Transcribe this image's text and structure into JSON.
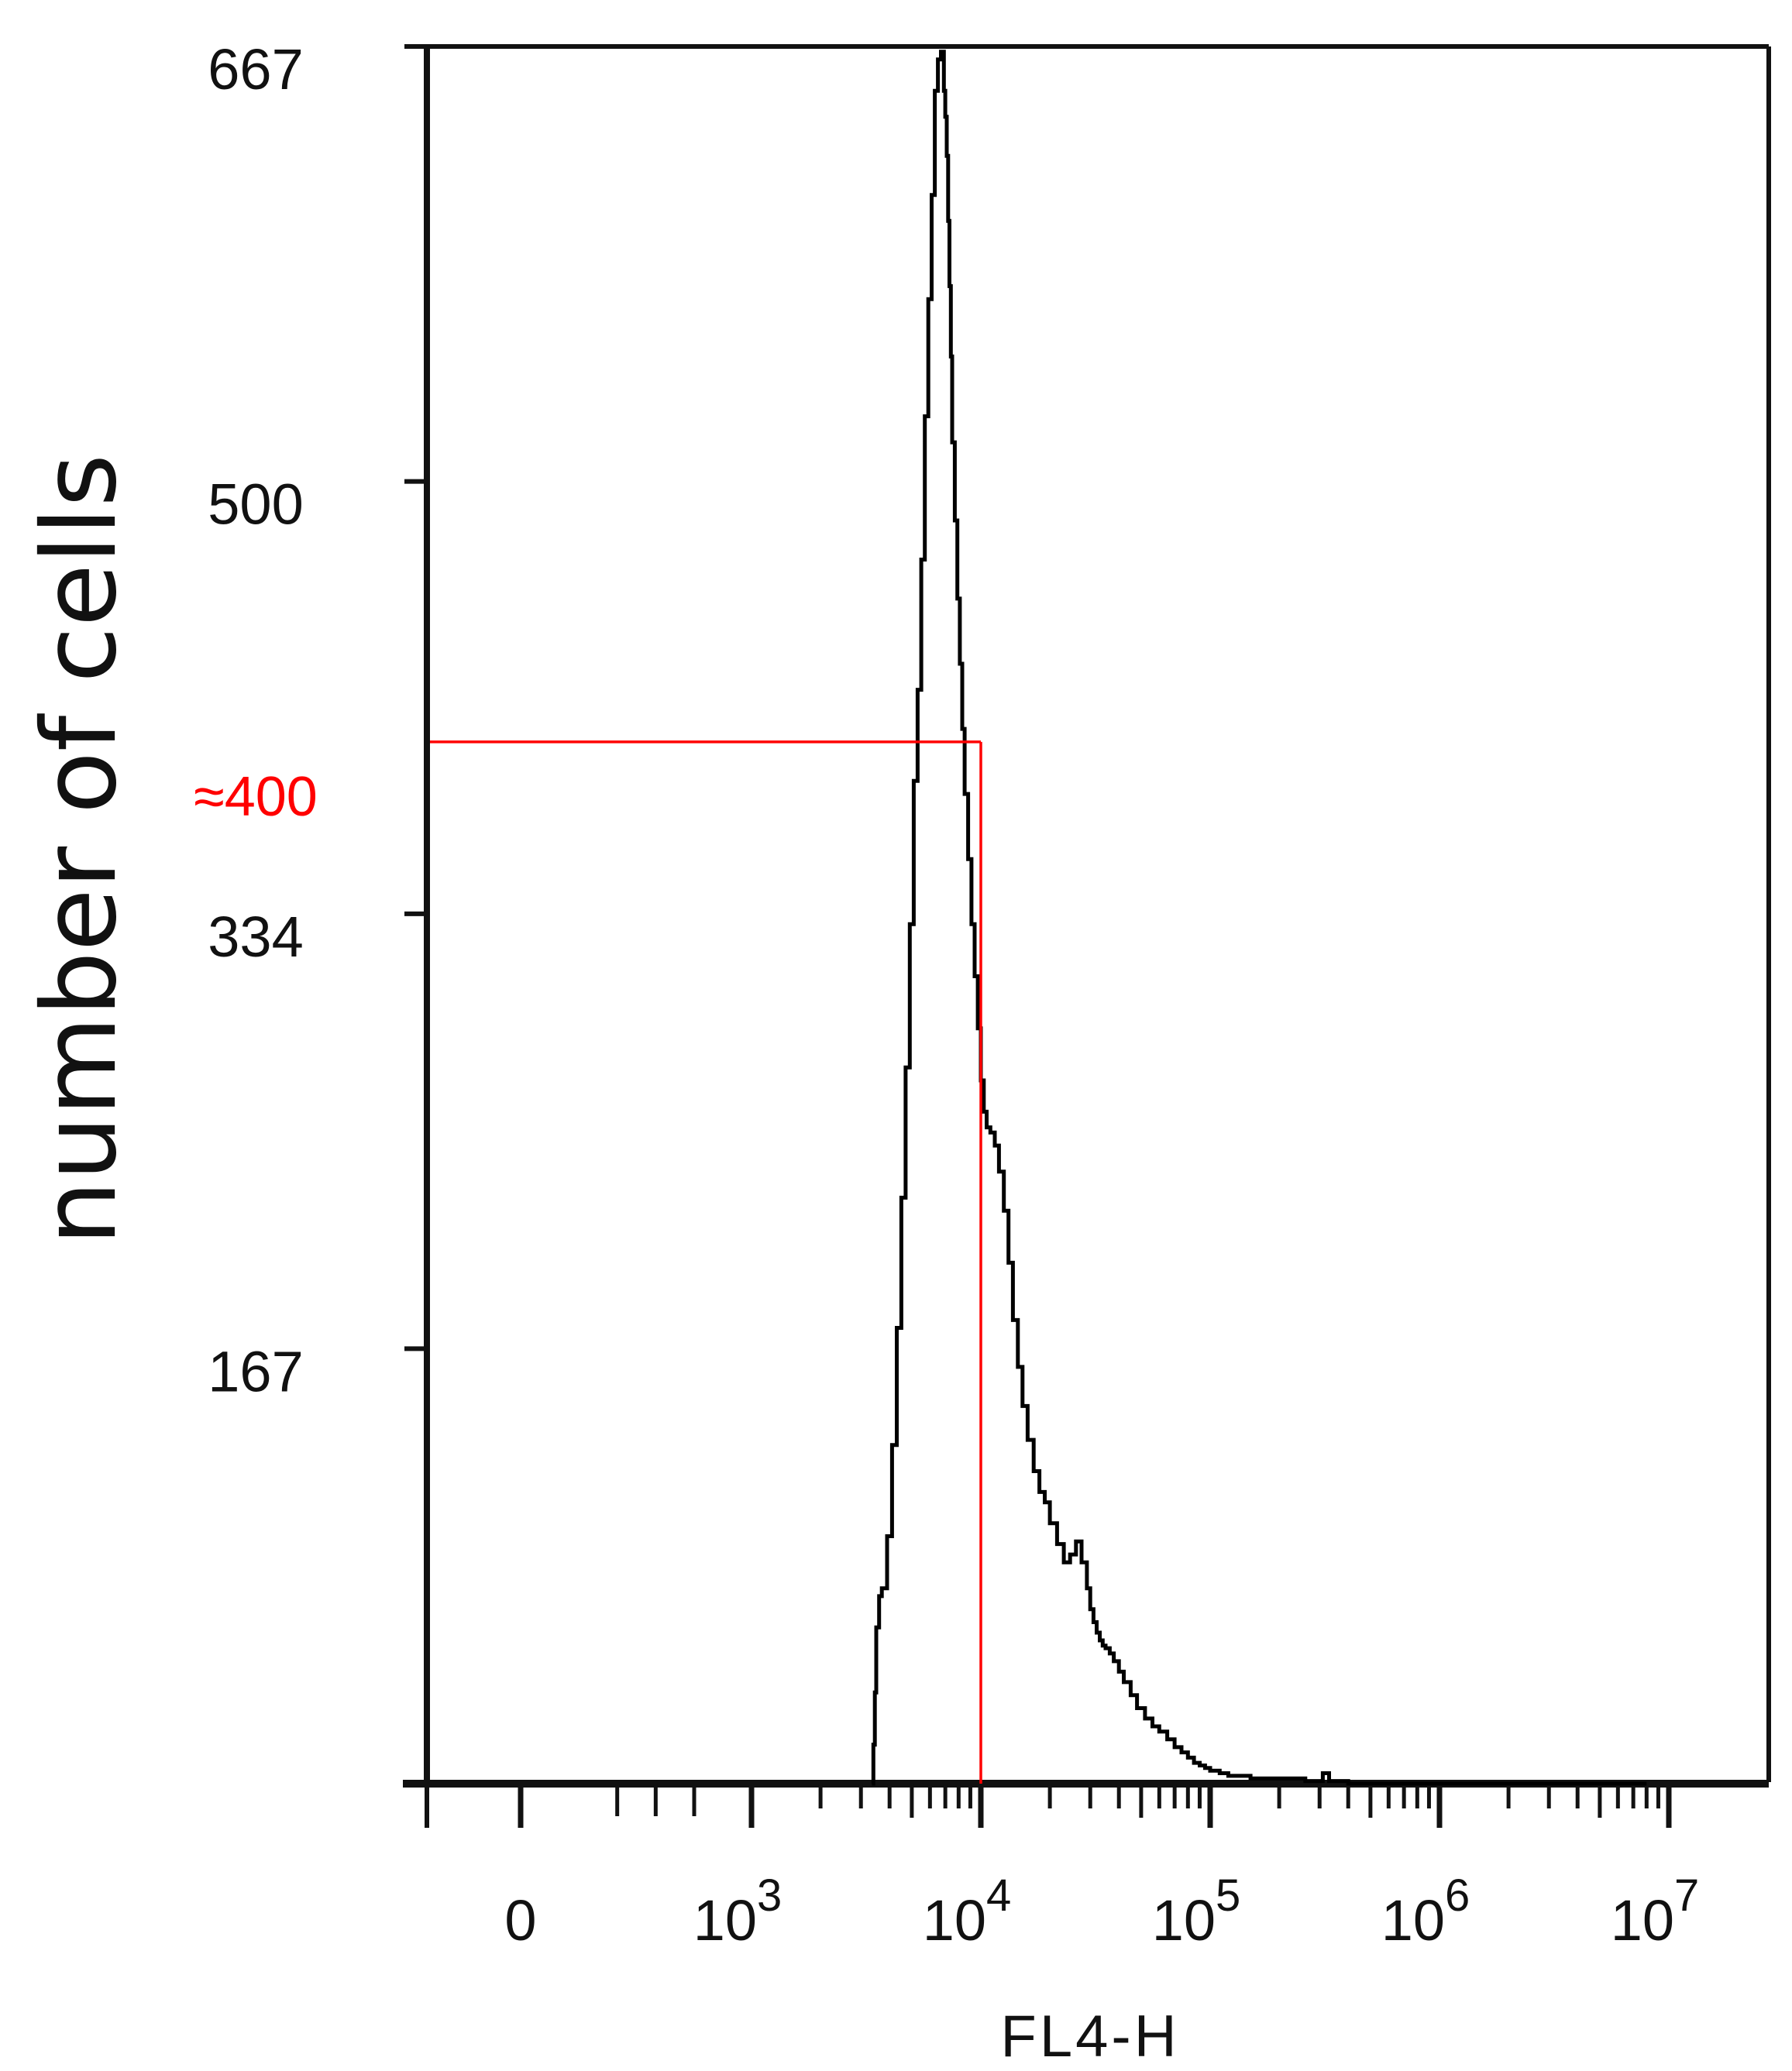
{
  "chart_data": {
    "type": "line",
    "title": "",
    "xlabel": "FL4-H",
    "ylabel": "number of cells",
    "x_scale": "log",
    "xlim": [
      0,
      10000000
    ],
    "ylim": [
      0,
      667
    ],
    "x_ticks": [
      {
        "value": 0,
        "label": "0"
      },
      {
        "value": 1000,
        "base": "10",
        "exp": "3"
      },
      {
        "value": 10000,
        "base": "10",
        "exp": "4"
      },
      {
        "value": 100000,
        "base": "10",
        "exp": "5"
      },
      {
        "value": 1000000,
        "base": "10",
        "exp": "6"
      },
      {
        "value": 10000000,
        "base": "10",
        "exp": "7"
      }
    ],
    "y_ticks": [
      {
        "value": 667,
        "label": "667"
      },
      {
        "value": 500,
        "label": "500"
      },
      {
        "value": 334,
        "label": "334"
      },
      {
        "value": 167,
        "label": "167"
      }
    ],
    "grid": false,
    "legend": "none",
    "series": [
      {
        "color": "#000000",
        "x": [
          3350,
          3400,
          3450,
          3500,
          3600,
          3700,
          3900,
          4100,
          4300,
          4500,
          4700,
          4900,
          5100,
          5300,
          5500,
          5700,
          5900,
          6100,
          6300,
          6500,
          6700,
          6900,
          7000,
          7100,
          7200,
          7300,
          7400,
          7500,
          7700,
          7900,
          8100,
          8300,
          8500,
          8800,
          9100,
          9400,
          9700,
          10000,
          10300,
          10600,
          11000,
          11500,
          12000,
          12600,
          13200,
          13800,
          14500,
          15200,
          16000,
          17000,
          18000,
          19000,
          20000,
          21500,
          23000,
          24500,
          26000,
          27500,
          29000,
          30000,
          31000,
          32000,
          33000,
          34000,
          35000,
          36500,
          38000,
          40000,
          42000,
          45000,
          48000,
          52000,
          56000,
          60000,
          65000,
          70000,
          75000,
          80000,
          85000,
          90000,
          95000,
          100000,
          110000,
          120000,
          130000,
          150000,
          170000,
          200000,
          230000,
          260000,
          290000,
          310000,
          330000,
          360000,
          400000,
          500000,
          700000,
          1000000,
          2000000,
          4000000,
          8000000
        ],
        "y": [
          0,
          15,
          35,
          60,
          72,
          75,
          95,
          130,
          175,
          225,
          275,
          330,
          385,
          420,
          470,
          525,
          570,
          610,
          650,
          662,
          665,
          650,
          640,
          625,
          600,
          575,
          548,
          515,
          485,
          455,
          430,
          405,
          380,
          355,
          330,
          310,
          290,
          270,
          258,
          252,
          250,
          245,
          235,
          220,
          200,
          178,
          160,
          145,
          132,
          120,
          112,
          108,
          100,
          92,
          85,
          88,
          93,
          85,
          75,
          67,
          62,
          58,
          55,
          53,
          52,
          50,
          47,
          43,
          39,
          34,
          29,
          25,
          22,
          20,
          17,
          14,
          12,
          10,
          8,
          7,
          6,
          5,
          4,
          3,
          3,
          2,
          2,
          2,
          2,
          1,
          1,
          4,
          1,
          1,
          0,
          0,
          0,
          0,
          0,
          0,
          0
        ]
      }
    ],
    "annotations": [
      {
        "type": "reference-lines",
        "color": "#ff0000",
        "x": 10000,
        "y": 400,
        "label": "≈400"
      }
    ]
  }
}
